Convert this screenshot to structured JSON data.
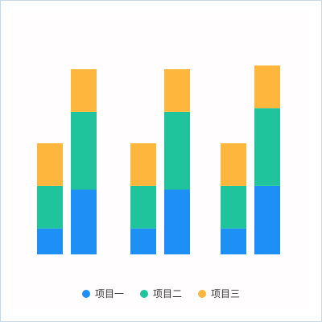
{
  "chart_data": {
    "type": "bar",
    "stacked": true,
    "title": "",
    "xlabel": "",
    "ylabel": "",
    "ylim": [
      0,
      10
    ],
    "grid": false,
    "legend_position": "bottom",
    "bars": [
      {
        "group": 1,
        "values": [
          1.4,
          2.3,
          2.3
        ]
      },
      {
        "group": 1,
        "values": [
          3.5,
          4.2,
          2.3
        ]
      },
      {
        "group": 2,
        "values": [
          1.4,
          2.3,
          2.3
        ]
      },
      {
        "group": 2,
        "values": [
          3.5,
          4.2,
          2.3
        ]
      },
      {
        "group": 3,
        "values": [
          1.4,
          2.3,
          2.3
        ]
      },
      {
        "group": 3,
        "values": [
          3.7,
          4.2,
          2.3
        ]
      }
    ],
    "series": [
      {
        "name": "项目一",
        "color": "#1e8ff5"
      },
      {
        "name": "项目二",
        "color": "#20c49c"
      },
      {
        "name": "项目三",
        "color": "#ffb63d"
      }
    ]
  }
}
